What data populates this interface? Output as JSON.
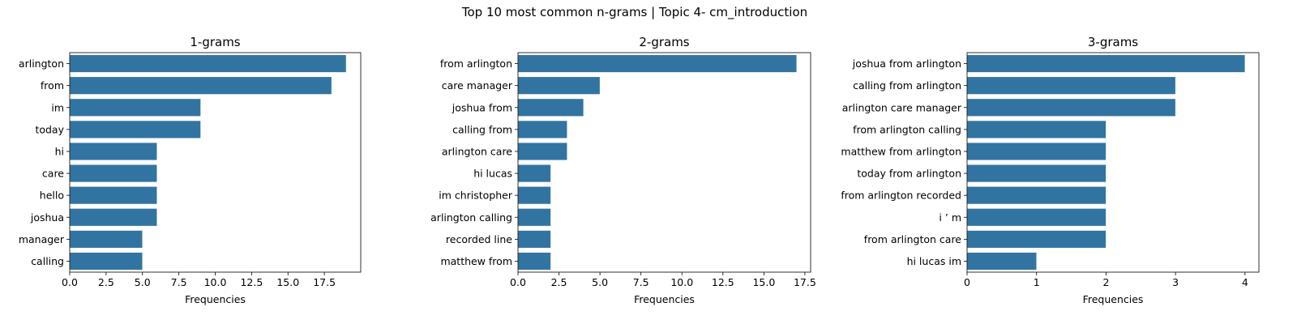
{
  "figure": {
    "suptitle": "Top 10 most common n-grams | Topic 4- cm_introduction",
    "bar_color": "#3274a1"
  },
  "chart_data": [
    {
      "type": "bar",
      "orientation": "horizontal",
      "title": "1-grams",
      "xlabel": "Frequencies",
      "ylabel": "",
      "xlim": [
        0,
        20
      ],
      "xticks": [
        "0.0",
        "2.5",
        "5.0",
        "7.5",
        "10.0",
        "12.5",
        "15.0",
        "17.5"
      ],
      "xtick_values": [
        0,
        2.5,
        5,
        7.5,
        10,
        12.5,
        15,
        17.5
      ],
      "categories": [
        "arlington",
        "from",
        "im",
        "today",
        "hi",
        "care",
        "hello",
        "joshua",
        "manager",
        "calling"
      ],
      "values": [
        19,
        18,
        9,
        9,
        6,
        6,
        6,
        6,
        5,
        5
      ]
    },
    {
      "type": "bar",
      "orientation": "horizontal",
      "title": "2-grams",
      "xlabel": "Frequencies",
      "ylabel": "",
      "xlim": [
        0,
        17.85
      ],
      "xticks": [
        "0.0",
        "2.5",
        "5.0",
        "7.5",
        "10.0",
        "12.5",
        "15.0",
        "17.5"
      ],
      "xtick_values": [
        0,
        2.5,
        5,
        7.5,
        10,
        12.5,
        15,
        17.5
      ],
      "categories": [
        "from arlington",
        "care manager",
        "joshua from",
        "calling from",
        "arlington care",
        "hi lucas",
        "im christopher",
        "arlington calling",
        "recorded line",
        "matthew from"
      ],
      "values": [
        17,
        5,
        4,
        3,
        3,
        2,
        2,
        2,
        2,
        2
      ]
    },
    {
      "type": "bar",
      "orientation": "horizontal",
      "title": "3-grams",
      "xlabel": "Frequencies",
      "ylabel": "",
      "xlim": [
        0,
        4.2
      ],
      "xticks": [
        "0",
        "1",
        "2",
        "3",
        "4"
      ],
      "xtick_values": [
        0,
        1,
        2,
        3,
        4
      ],
      "categories": [
        "joshua from arlington",
        "calling from arlington",
        "arlington care manager",
        "from arlington calling",
        "matthew from arlington",
        "today from arlington",
        "from arlington recorded",
        "i ’ m",
        "from arlington care",
        "hi lucas im"
      ],
      "values": [
        4,
        3,
        3,
        2,
        2,
        2,
        2,
        2,
        2,
        1
      ]
    }
  ]
}
